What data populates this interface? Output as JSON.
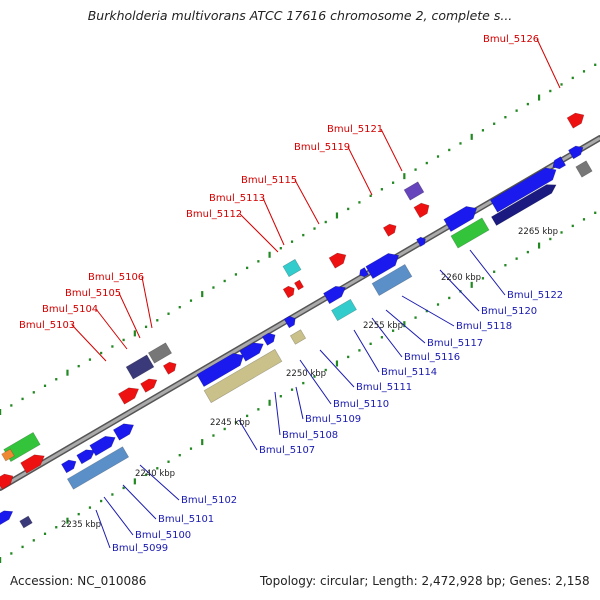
{
  "header": {
    "title": "Burkholderia multivorans ATCC 17616 chromosome 2, complete s..."
  },
  "footer": {
    "accession": "Accession: NC_010086",
    "summary": "Topology: circular; Length: 2,472,928 bp; Genes: 2,158"
  },
  "colors": {
    "backbone": "#888888",
    "cds_blue": "#1a1aee",
    "navy": "#1a1a80",
    "steel": "#5b8fc8",
    "khaki": "#c9c08a",
    "cyan": "#33cccc",
    "green": "#33c43c",
    "red": "#ee1111",
    "purple": "#6644bb",
    "dark_purple": "#3a3a7a",
    "gray": "#777777",
    "orange": "#ee8833",
    "tick_green": "#228822",
    "label_red": "#d40000",
    "label_blue": "#1a1ab0"
  },
  "kbp_ticks": [
    "2235 kbp",
    "2240 kbp",
    "2245 kbp",
    "2250 kbp",
    "2255 kbp",
    "2260 kbp",
    "2265 kbp"
  ],
  "upper_labels": [
    "Bmul_5103",
    "Bmul_5104",
    "Bmul_5105",
    "Bmul_5106",
    "Bmul_5112",
    "Bmul_5113",
    "Bmul_5115",
    "Bmul_5119",
    "Bmul_5121",
    "Bmul_5126"
  ],
  "lower_labels": [
    "Bmul_5099",
    "Bmul_5100",
    "Bmul_5101",
    "Bmul_5102",
    "Bmul_5107",
    "Bmul_5108",
    "Bmul_5109",
    "Bmul_5110",
    "Bmul_5111",
    "Bmul_5114",
    "Bmul_5116",
    "Bmul_5117",
    "Bmul_5118",
    "Bmul_5120",
    "Bmul_5122"
  ]
}
